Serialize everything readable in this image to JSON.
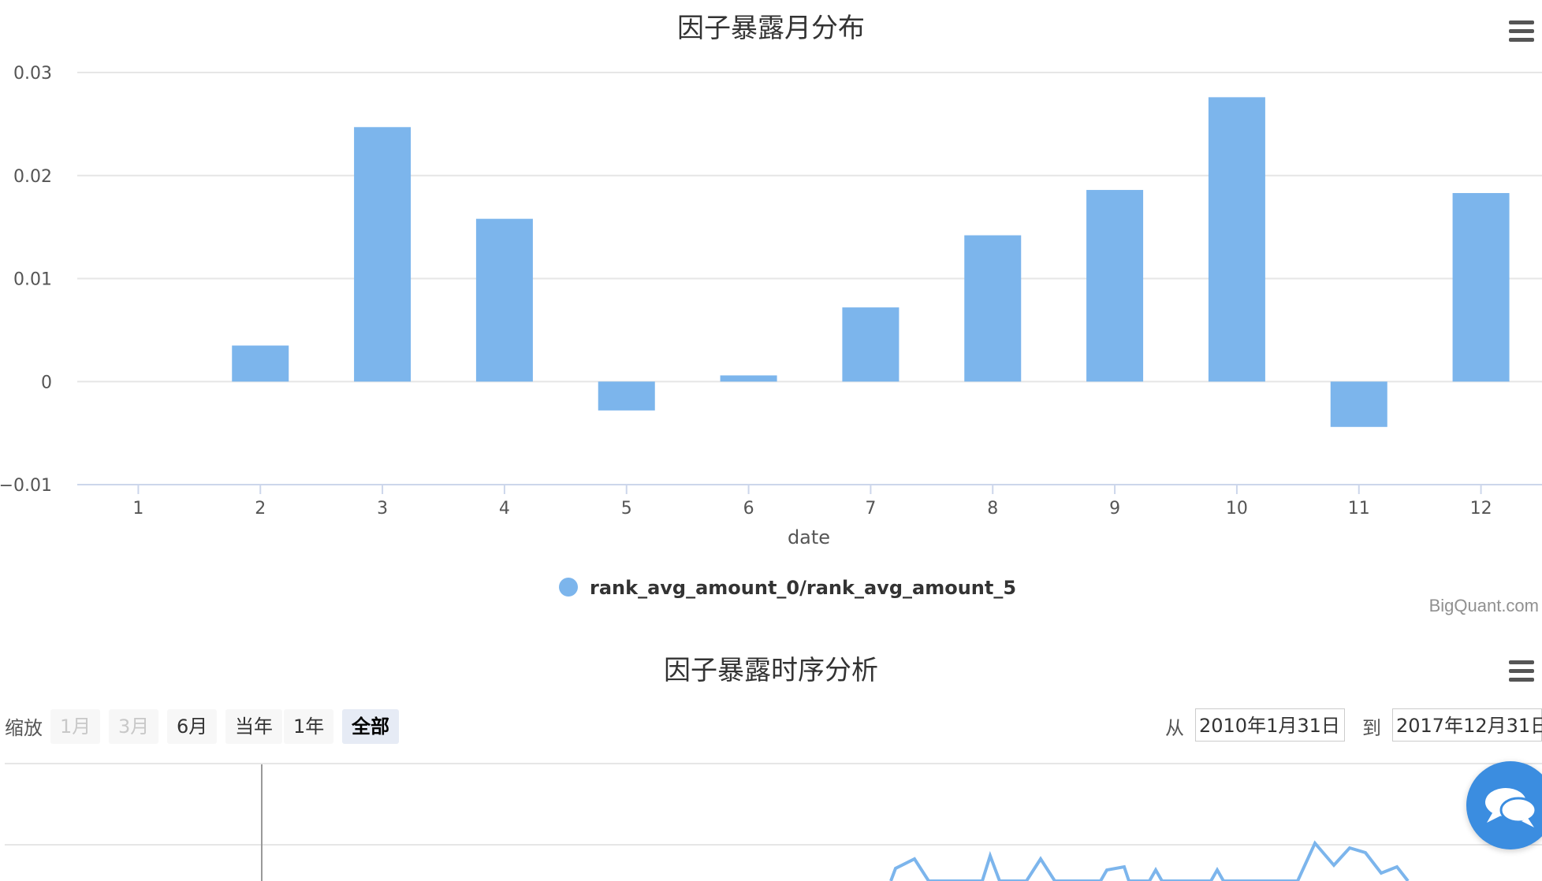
{
  "chart1": {
    "title": "因子暴露月分布",
    "menu_icon": "hamburger-menu-icon",
    "credits": "BigQuant.com"
  },
  "chart2": {
    "title": "因子暴露时序分析",
    "menu_icon": "hamburger-menu-icon",
    "zoom_label": "缩放",
    "zoom_buttons": [
      "1月",
      "3月",
      "6月",
      "当年",
      "1年",
      "全部"
    ],
    "from_label": "从",
    "from_date": "2010年1月31日",
    "to_label": "到",
    "to_date": "2017年12月31日",
    "chat_icon": "chat-bubbles-icon"
  },
  "chart_data": [
    {
      "type": "bar",
      "title": "因子暴露月分布",
      "xlabel": "date",
      "ylabel": "",
      "categories": [
        "1",
        "2",
        "3",
        "4",
        "5",
        "6",
        "7",
        "8",
        "9",
        "10",
        "11",
        "12"
      ],
      "series": [
        {
          "name": "rank_avg_amount_0/rank_avg_amount_5",
          "values": [
            0,
            0.0035,
            0.0247,
            0.0158,
            -0.0028,
            0.0006,
            0.0072,
            0.0142,
            0.0186,
            0.0276,
            -0.0044,
            0.0183
          ],
          "color": "#7cb5ec"
        }
      ],
      "yticks": [
        "0.03",
        "0.02",
        "0.01",
        "0",
        "−0.01"
      ],
      "ylim": [
        -0.01,
        0.03
      ],
      "grid": true,
      "legend": "bottom-center"
    },
    {
      "type": "line",
      "title": "因子暴露时序分析",
      "color": "#7cb5ec"
    }
  ]
}
